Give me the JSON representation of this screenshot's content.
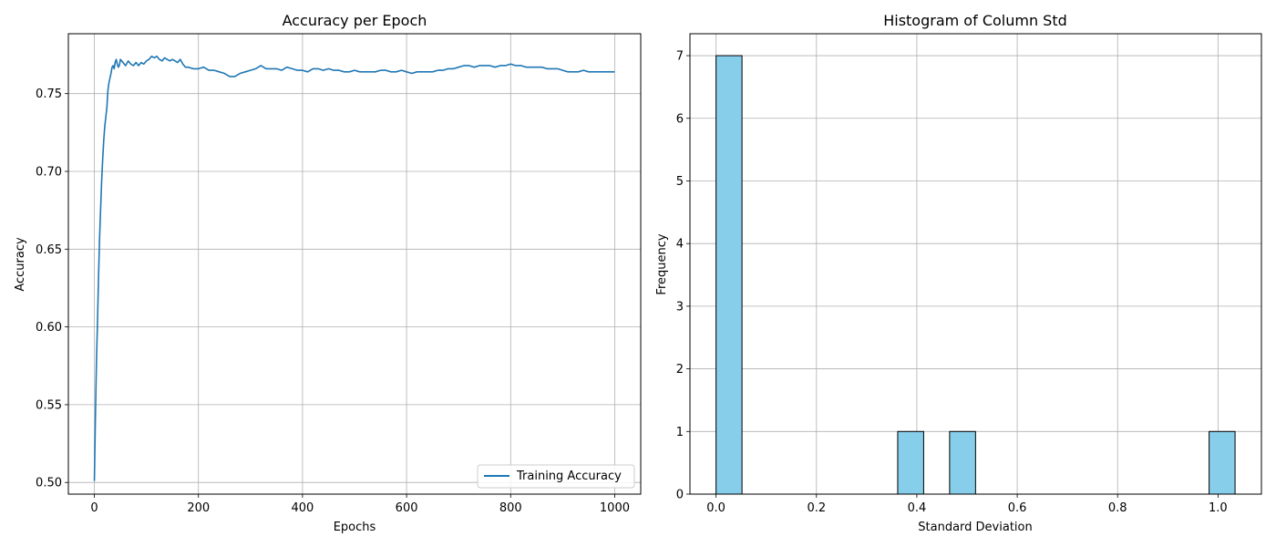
{
  "chart_data": [
    {
      "type": "line",
      "title": "Accuracy per Epoch",
      "xlabel": "Epochs",
      "ylabel": "Accuracy",
      "xlim": [
        -50,
        1050
      ],
      "ylim": [
        0.4925,
        0.7885
      ],
      "xticks": [
        0,
        200,
        400,
        600,
        800,
        1000
      ],
      "yticks": [
        0.5,
        0.55,
        0.6,
        0.65,
        0.7,
        0.75
      ],
      "xtick_labels": [
        "0",
        "200",
        "400",
        "600",
        "800",
        "1000"
      ],
      "ytick_labels": [
        "0.50",
        "0.55",
        "0.60",
        "0.65",
        "0.70",
        "0.75"
      ],
      "grid": true,
      "legend_position": "lower-right",
      "series": [
        {
          "name": "Training Accuracy",
          "color": "#1f77b4",
          "x": [
            0,
            2,
            4,
            6,
            8,
            10,
            12,
            14,
            16,
            18,
            20,
            22,
            24,
            26,
            28,
            30,
            32,
            34,
            36,
            38,
            40,
            42,
            44,
            46,
            48,
            50,
            55,
            60,
            65,
            70,
            75,
            80,
            85,
            90,
            95,
            100,
            105,
            110,
            115,
            120,
            125,
            130,
            135,
            140,
            145,
            150,
            155,
            160,
            165,
            170,
            175,
            180,
            190,
            200,
            210,
            220,
            230,
            240,
            250,
            260,
            270,
            280,
            290,
            300,
            310,
            320,
            330,
            340,
            350,
            360,
            370,
            380,
            390,
            400,
            410,
            420,
            430,
            440,
            450,
            460,
            470,
            480,
            490,
            500,
            510,
            520,
            530,
            540,
            550,
            560,
            570,
            580,
            590,
            600,
            610,
            620,
            630,
            640,
            650,
            660,
            670,
            680,
            690,
            700,
            710,
            720,
            730,
            740,
            750,
            760,
            770,
            780,
            790,
            800,
            810,
            820,
            830,
            840,
            850,
            860,
            870,
            880,
            890,
            900,
            910,
            920,
            930,
            940,
            950,
            960,
            970,
            980,
            990,
            1000
          ],
          "y": [
            0.501,
            0.542,
            0.578,
            0.603,
            0.632,
            0.657,
            0.676,
            0.694,
            0.708,
            0.72,
            0.729,
            0.735,
            0.741,
            0.752,
            0.757,
            0.76,
            0.763,
            0.767,
            0.768,
            0.766,
            0.77,
            0.772,
            0.769,
            0.767,
            0.768,
            0.772,
            0.77,
            0.768,
            0.771,
            0.769,
            0.768,
            0.77,
            0.768,
            0.77,
            0.769,
            0.771,
            0.772,
            0.774,
            0.773,
            0.774,
            0.772,
            0.771,
            0.773,
            0.772,
            0.771,
            0.772,
            0.771,
            0.77,
            0.772,
            0.769,
            0.767,
            0.767,
            0.766,
            0.766,
            0.767,
            0.765,
            0.765,
            0.764,
            0.763,
            0.761,
            0.761,
            0.763,
            0.764,
            0.765,
            0.766,
            0.768,
            0.766,
            0.766,
            0.766,
            0.765,
            0.767,
            0.766,
            0.765,
            0.765,
            0.764,
            0.766,
            0.766,
            0.765,
            0.766,
            0.765,
            0.765,
            0.764,
            0.764,
            0.765,
            0.764,
            0.764,
            0.764,
            0.764,
            0.765,
            0.765,
            0.764,
            0.764,
            0.765,
            0.764,
            0.763,
            0.764,
            0.764,
            0.764,
            0.764,
            0.765,
            0.765,
            0.766,
            0.766,
            0.767,
            0.768,
            0.768,
            0.767,
            0.768,
            0.768,
            0.768,
            0.767,
            0.768,
            0.768,
            0.769,
            0.768,
            0.768,
            0.767,
            0.767,
            0.767,
            0.767,
            0.766,
            0.766,
            0.766,
            0.765,
            0.764,
            0.764,
            0.764,
            0.765,
            0.764,
            0.764,
            0.764,
            0.764,
            0.764,
            0.764
          ]
        }
      ]
    },
    {
      "type": "bar",
      "title": "Histogram of Column Std",
      "xlabel": "Standard Deviation",
      "ylabel": "Frequency",
      "xlim": [
        -0.052,
        1.0865
      ],
      "ylim": [
        0,
        7.35
      ],
      "xticks": [
        0.0,
        0.2,
        0.4,
        0.6,
        0.8,
        1.0
      ],
      "yticks": [
        0,
        1,
        2,
        3,
        4,
        5,
        6,
        7
      ],
      "xtick_labels": [
        "0.0",
        "0.2",
        "0.4",
        "0.6",
        "0.8",
        "1.0"
      ],
      "ytick_labels": [
        "0",
        "1",
        "2",
        "3",
        "4",
        "5",
        "6",
        "7"
      ],
      "grid": true,
      "bar_color": "#87ceeb",
      "edge_color": "#000000",
      "bins": [
        {
          "x0": 0.0,
          "x1": 0.0517,
          "count": 7
        },
        {
          "x0": 0.0517,
          "x1": 0.1034,
          "count": 0
        },
        {
          "x0": 0.1034,
          "x1": 0.1551,
          "count": 0
        },
        {
          "x0": 0.1551,
          "x1": 0.2068,
          "count": 0
        },
        {
          "x0": 0.2068,
          "x1": 0.2585,
          "count": 0
        },
        {
          "x0": 0.2585,
          "x1": 0.3102,
          "count": 0
        },
        {
          "x0": 0.3102,
          "x1": 0.3619,
          "count": 0
        },
        {
          "x0": 0.3619,
          "x1": 0.4136,
          "count": 1
        },
        {
          "x0": 0.4136,
          "x1": 0.4653,
          "count": 0
        },
        {
          "x0": 0.4653,
          "x1": 0.517,
          "count": 1
        },
        {
          "x0": 0.517,
          "x1": 0.5687,
          "count": 0
        },
        {
          "x0": 0.5687,
          "x1": 0.6204,
          "count": 0
        },
        {
          "x0": 0.6204,
          "x1": 0.6721,
          "count": 0
        },
        {
          "x0": 0.6721,
          "x1": 0.7238,
          "count": 0
        },
        {
          "x0": 0.7238,
          "x1": 0.7755,
          "count": 0
        },
        {
          "x0": 0.7755,
          "x1": 0.8272,
          "count": 0
        },
        {
          "x0": 0.8272,
          "x1": 0.8789,
          "count": 0
        },
        {
          "x0": 0.8789,
          "x1": 0.9306,
          "count": 0
        },
        {
          "x0": 0.9306,
          "x1": 0.9823,
          "count": 0
        },
        {
          "x0": 0.9823,
          "x1": 1.034,
          "count": 1
        }
      ]
    }
  ]
}
